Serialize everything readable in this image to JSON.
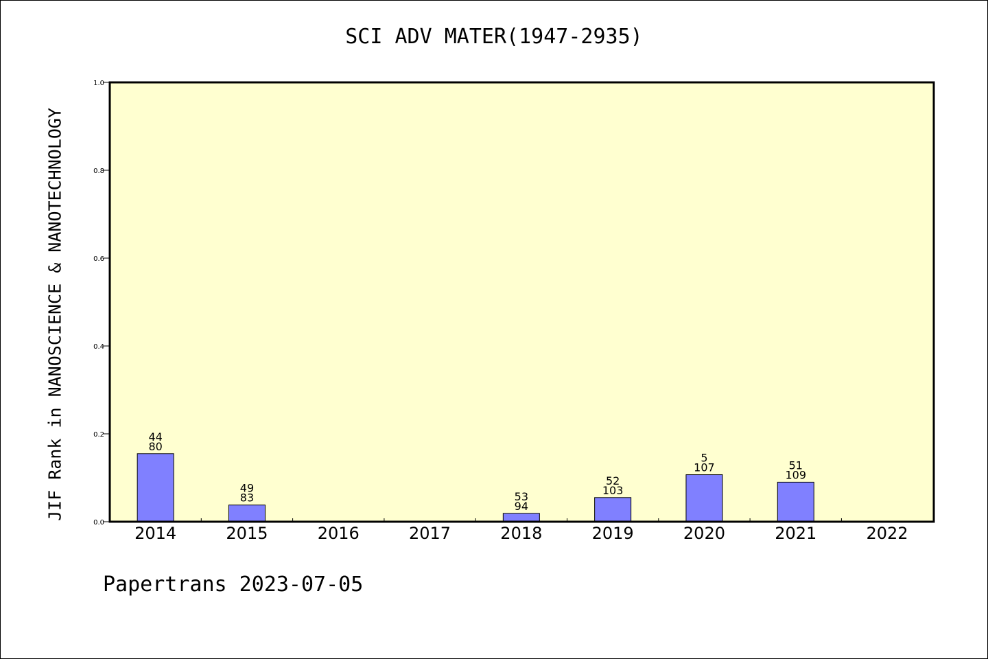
{
  "chart_data": {
    "type": "bar",
    "title": "SCI ADV MATER(1947-2935)",
    "ylabel": "JIF Rank in NANOSCIENCE & NANOTECHNOLOGY",
    "xlabel": "",
    "ylim": [
      0,
      1.0
    ],
    "yticks": [
      "0.0",
      "0.2",
      "0.4",
      "0.6",
      "0.8",
      "1.0"
    ],
    "categories": [
      "2014",
      "2015",
      "2016",
      "2017",
      "2018",
      "2019",
      "2020",
      "2021",
      "2022"
    ],
    "values": [
      0.155,
      0.038,
      null,
      null,
      0.019,
      0.055,
      0.107,
      0.09,
      null
    ],
    "rank_labels": [
      {
        "rank": "44",
        "total": "80"
      },
      {
        "rank": "49",
        "total": "83"
      },
      null,
      null,
      {
        "rank": "53",
        "total": "94"
      },
      {
        "rank": "52",
        "total": "103"
      },
      {
        "rank": "5",
        "total": "107"
      },
      {
        "rank": "51",
        "total": "109"
      },
      null
    ],
    "grid": false,
    "colors": {
      "bar": "#8080ff",
      "plot_background": "#ffffd0"
    }
  },
  "footer": {
    "text": "Papertrans 2023-07-05"
  }
}
